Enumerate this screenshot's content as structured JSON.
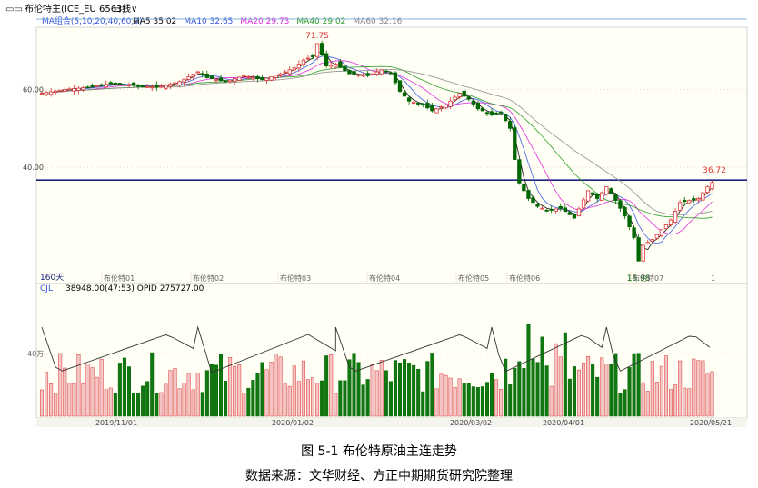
{
  "header": {
    "instrument": "布伦特主(ICE_EU 6563)",
    "period": "日线∨"
  },
  "ma_bar": {
    "label": "MA组合(5,10,20,40,60,0)",
    "items": [
      {
        "text": "MA5 35.02",
        "color": "#000000"
      },
      {
        "text": "MA10 32.65",
        "color": "#3355dd"
      },
      {
        "text": "MA20 29.73",
        "color": "#dd22dd"
      },
      {
        "text": "MA40 29.02",
        "color": "#229922"
      },
      {
        "text": "MA60 32.16",
        "color": "#888888"
      }
    ]
  },
  "volume_bar": {
    "label": "CJL",
    "text": "38948.00(47:53)  OPID 275727.00"
  },
  "labels": {
    "period_days": "160天",
    "high_price": "71.75",
    "low_price": "15.98",
    "last_price": "36.72",
    "vol_tick": "40万",
    "page_num": "1"
  },
  "contract_labels": [
    "布伦特01",
    "布伦特02",
    "布伦特03",
    "布伦特04",
    "布伦特05",
    "布伦特06",
    "布伦特07"
  ],
  "caption": "图 5-1  布伦特原油主连走势",
  "source": "数据来源：文华财经、方正中期期货研究院整理",
  "colors": {
    "up": "#dd3333",
    "down": "#006600",
    "hline": "#1a237e",
    "hi_line": "#8ab4d8"
  },
  "chart_data": {
    "type": "candlestick",
    "title": "布伦特主(ICE_EU 6563)",
    "period": "日线",
    "y_ticks": [
      40.0,
      60.0
    ],
    "ylim": [
      13,
      75
    ],
    "x_date_labels": [
      "2019/11/01",
      "2020/01/02",
      "2020/03/02",
      "2020/04/01",
      "2020/05/21"
    ],
    "annotations": {
      "high": 71.75,
      "low": 15.98,
      "last": 36.72
    },
    "price_path": [
      [
        0,
        59.0
      ],
      [
        10,
        60.0
      ],
      [
        20,
        60.5
      ],
      [
        30,
        61.5
      ],
      [
        40,
        61.0
      ],
      [
        50,
        60.5
      ],
      [
        60,
        62.0
      ],
      [
        68,
        64.5
      ],
      [
        72,
        63.0
      ],
      [
        80,
        62.0
      ],
      [
        88,
        63.5
      ],
      [
        96,
        62.5
      ],
      [
        104,
        64.0
      ],
      [
        110,
        65.5
      ],
      [
        114,
        67.5
      ],
      [
        118,
        68.5
      ],
      [
        120,
        71.75
      ],
      [
        124,
        66.0
      ],
      [
        128,
        66.5
      ],
      [
        134,
        64.0
      ],
      [
        142,
        63.5
      ],
      [
        148,
        65.0
      ],
      [
        152,
        64.0
      ],
      [
        156,
        59.5
      ],
      [
        160,
        57.0
      ],
      [
        166,
        56.0
      ],
      [
        170,
        54.5
      ],
      [
        176,
        56.0
      ],
      [
        182,
        59.0
      ],
      [
        186,
        57.5
      ],
      [
        190,
        55.0
      ],
      [
        196,
        53.5
      ],
      [
        200,
        54.0
      ],
      [
        204,
        50.0
      ],
      [
        206,
        42.0
      ],
      [
        208,
        36.0
      ],
      [
        212,
        32.0
      ],
      [
        216,
        30.0
      ],
      [
        220,
        29.0
      ],
      [
        226,
        29.5
      ],
      [
        232,
        27.0
      ],
      [
        238,
        34.0
      ],
      [
        242,
        32.0
      ],
      [
        246,
        35.0
      ],
      [
        250,
        31.5
      ],
      [
        254,
        27.5
      ],
      [
        258,
        22.0
      ],
      [
        260,
        15.98
      ],
      [
        262,
        20.0
      ],
      [
        266,
        21.5
      ],
      [
        270,
        24.0
      ],
      [
        274,
        26.5
      ],
      [
        278,
        31.0
      ],
      [
        282,
        31.5
      ],
      [
        286,
        32.0
      ],
      [
        290,
        35.0
      ],
      [
        293,
        36.72
      ]
    ],
    "ma_lines": [
      {
        "name": "MA5",
        "value": 35.02
      },
      {
        "name": "MA10",
        "value": 32.65
      },
      {
        "name": "MA20",
        "value": 29.73
      },
      {
        "name": "MA40",
        "value": 29.02
      },
      {
        "name": "MA60",
        "value": 32.16
      }
    ],
    "volume": {
      "label": "CJL",
      "last": 38948.0,
      "open_interest": 275727.0,
      "unit_tick": "40万"
    }
  }
}
